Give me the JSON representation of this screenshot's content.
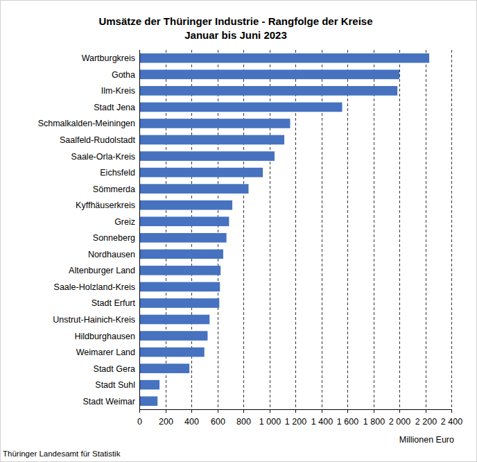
{
  "chart_data": {
    "type": "bar",
    "orientation": "horizontal",
    "title": "Umsätze der Thüringer Industrie - Rangfolge der Kreise",
    "subtitle": "Januar bis Juni 2023",
    "x_label": "Millionen Euro",
    "source": "Thüringer Landesamt für Statistik",
    "categories": [
      "Wartburgkreis",
      "Gotha",
      "Ilm-Kreis",
      "Stadt Jena",
      "Schmalkalden-Meiningen",
      "Saalfeld-Rudolstadt",
      "Saale-Orla-Kreis",
      "Eichsfeld",
      "Sömmerda",
      "Kyffhäuserkreis",
      "Greiz",
      "Sonneberg",
      "Nordhausen",
      "Altenburger Land",
      "Saale-Holzland-Kreis",
      "Stadt Erfurt",
      "Unstrut-Hainich-Kreis",
      "Hildburghausen",
      "Weimarer Land",
      "Stadt Gera",
      "Stadt Suhl",
      "Stadt Weimar"
    ],
    "values": [
      2230,
      2000,
      1985,
      1560,
      1160,
      1115,
      1040,
      950,
      840,
      715,
      690,
      670,
      645,
      625,
      620,
      615,
      540,
      525,
      500,
      385,
      155,
      140
    ],
    "color": "#4672c0",
    "xlim": [
      0,
      2400
    ],
    "xticks": [
      0,
      200,
      400,
      600,
      800,
      {
        "value": 1000,
        "label": "1 000"
      },
      {
        "value": 1200,
        "label": "1 200"
      },
      {
        "value": 1400,
        "label": "1 400"
      },
      {
        "value": 1600,
        "label": "1 600"
      },
      {
        "value": 1800,
        "label": "1 800"
      },
      {
        "value": 2000,
        "label": "2 000"
      },
      {
        "value": 2200,
        "label": "2 200"
      },
      {
        "value": 2400,
        "label": "2 400"
      }
    ],
    "grid": true
  }
}
